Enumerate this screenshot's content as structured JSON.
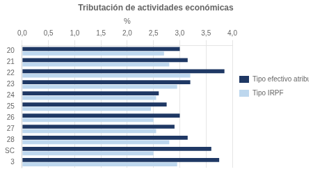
{
  "chart_data": {
    "type": "bar",
    "orientation": "horizontal",
    "title": "Tributación de actividades económicas",
    "xlabel": "%",
    "categories": [
      "20",
      "21",
      "22",
      "23",
      "24",
      "25",
      "26",
      "27",
      "28",
      "SC",
      "3"
    ],
    "series": [
      {
        "name": "Tipo efectivo atribuible",
        "color": "#1F3864",
        "values": [
          3.0,
          3.15,
          3.85,
          3.2,
          2.6,
          2.75,
          3.0,
          2.9,
          3.15,
          3.6,
          3.75
        ]
      },
      {
        "name": "Tipo IRPF",
        "color": "#BDD7EE",
        "values": [
          2.7,
          2.8,
          3.2,
          2.95,
          2.55,
          2.45,
          2.5,
          2.55,
          2.8,
          2.5,
          2.95
        ]
      }
    ],
    "xlim": [
      0,
      4.0
    ],
    "xticks": [
      {
        "value": 0.0,
        "label": "0,0"
      },
      {
        "value": 0.5,
        "label": "0,5"
      },
      {
        "value": 1.0,
        "label": "1,0"
      },
      {
        "value": 1.5,
        "label": "1,5"
      },
      {
        "value": 2.0,
        "label": "2,0"
      },
      {
        "value": 2.5,
        "label": "2,5"
      },
      {
        "value": 3.0,
        "label": "3,0"
      },
      {
        "value": 3.5,
        "label": "3,5"
      },
      {
        "value": 4.0,
        "label": "4,0"
      }
    ],
    "grid": true,
    "legend": "right"
  }
}
